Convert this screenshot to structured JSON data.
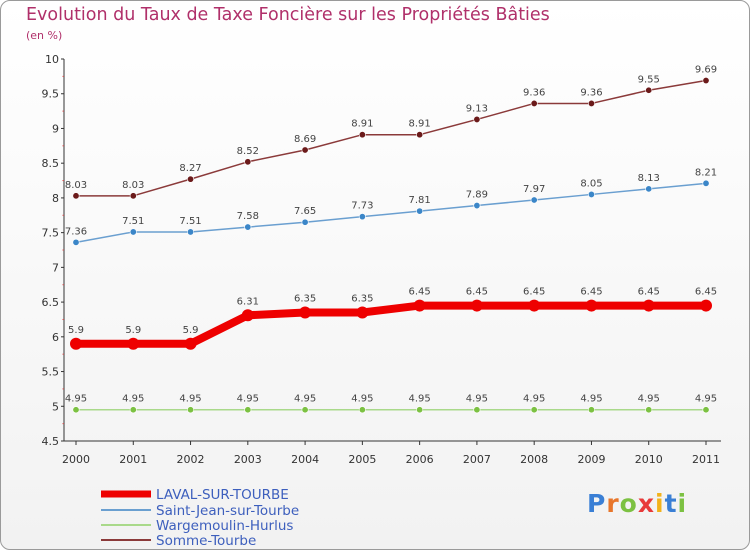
{
  "header": {
    "title": "Evolution du Taux de Taxe Foncière sur les Propriétés Bâties",
    "subtitle": "(en %)"
  },
  "brand": {
    "letters": [
      "P",
      "r",
      "o",
      "x",
      "i",
      "t",
      "i"
    ],
    "colors": [
      "#3a7fd5",
      "#e8762b",
      "#7cc142",
      "#e83a3a",
      "#f2b21b",
      "#3a7fd5",
      "#7cc142"
    ]
  },
  "chart_data": {
    "type": "line",
    "title": "Evolution du Taux de Taxe Foncière sur les Propriétés Bâties",
    "subtitle": "(en %)",
    "xlabel": "",
    "ylabel": "",
    "ylim": [
      4.5,
      10
    ],
    "grid": false,
    "legend_position": "bottom-left",
    "x": [
      "2000",
      "2001",
      "2002",
      "2003",
      "2004",
      "2005",
      "2006",
      "2007",
      "2008",
      "2009",
      "2010",
      "2011"
    ],
    "y_ticks": [
      "4.5",
      "5",
      "5.5",
      "6",
      "6.5",
      "7",
      "7.5",
      "8",
      "8.5",
      "9",
      "9.5",
      "10"
    ],
    "series": [
      {
        "name": "LAVAL-SUR-TOURBE",
        "color": "#ee0000",
        "style": "thick",
        "values": [
          5.9,
          5.9,
          5.9,
          6.31,
          6.35,
          6.35,
          6.45,
          6.45,
          6.45,
          6.45,
          6.45,
          6.45
        ],
        "labels": [
          "5.9",
          "5.9",
          "5.9",
          "6.31",
          "6.35",
          "6.35",
          "6.45",
          "6.45",
          "6.45",
          "6.45",
          "6.45",
          "6.45"
        ]
      },
      {
        "name": "Saint-Jean-sur-Tourbe",
        "color": "#6a9fd0",
        "marker": "#3b86c8",
        "values": [
          7.36,
          7.51,
          7.51,
          7.58,
          7.65,
          7.73,
          7.81,
          7.89,
          7.97,
          8.05,
          8.13,
          8.21
        ],
        "labels": [
          "7.36",
          "7.51",
          "7.51",
          "7.58",
          "7.65",
          "7.73",
          "7.81",
          "7.89",
          "7.97",
          "8.05",
          "8.13",
          "8.21"
        ]
      },
      {
        "name": "Wargemoulin-Hurlus",
        "color": "#a9d98a",
        "marker": "#7cc142",
        "values": [
          4.95,
          4.95,
          4.95,
          4.95,
          4.95,
          4.95,
          4.95,
          4.95,
          4.95,
          4.95,
          4.95,
          4.95
        ],
        "labels": [
          "4.95",
          "4.95",
          "4.95",
          "4.95",
          "4.95",
          "4.95",
          "4.95",
          "4.95",
          "4.95",
          "4.95",
          "4.95",
          "4.95"
        ]
      },
      {
        "name": "Somme-Tourbe",
        "color": "#8b3a3a",
        "marker": "#6b1a1a",
        "values": [
          8.03,
          8.03,
          8.27,
          8.52,
          8.69,
          8.91,
          8.91,
          9.13,
          9.36,
          9.36,
          9.55,
          9.69
        ],
        "labels": [
          "8.03",
          "8.03",
          "8.27",
          "8.52",
          "8.69",
          "8.91",
          "8.91",
          "9.13",
          "9.36",
          "9.36",
          "9.55",
          "9.69"
        ]
      }
    ]
  }
}
